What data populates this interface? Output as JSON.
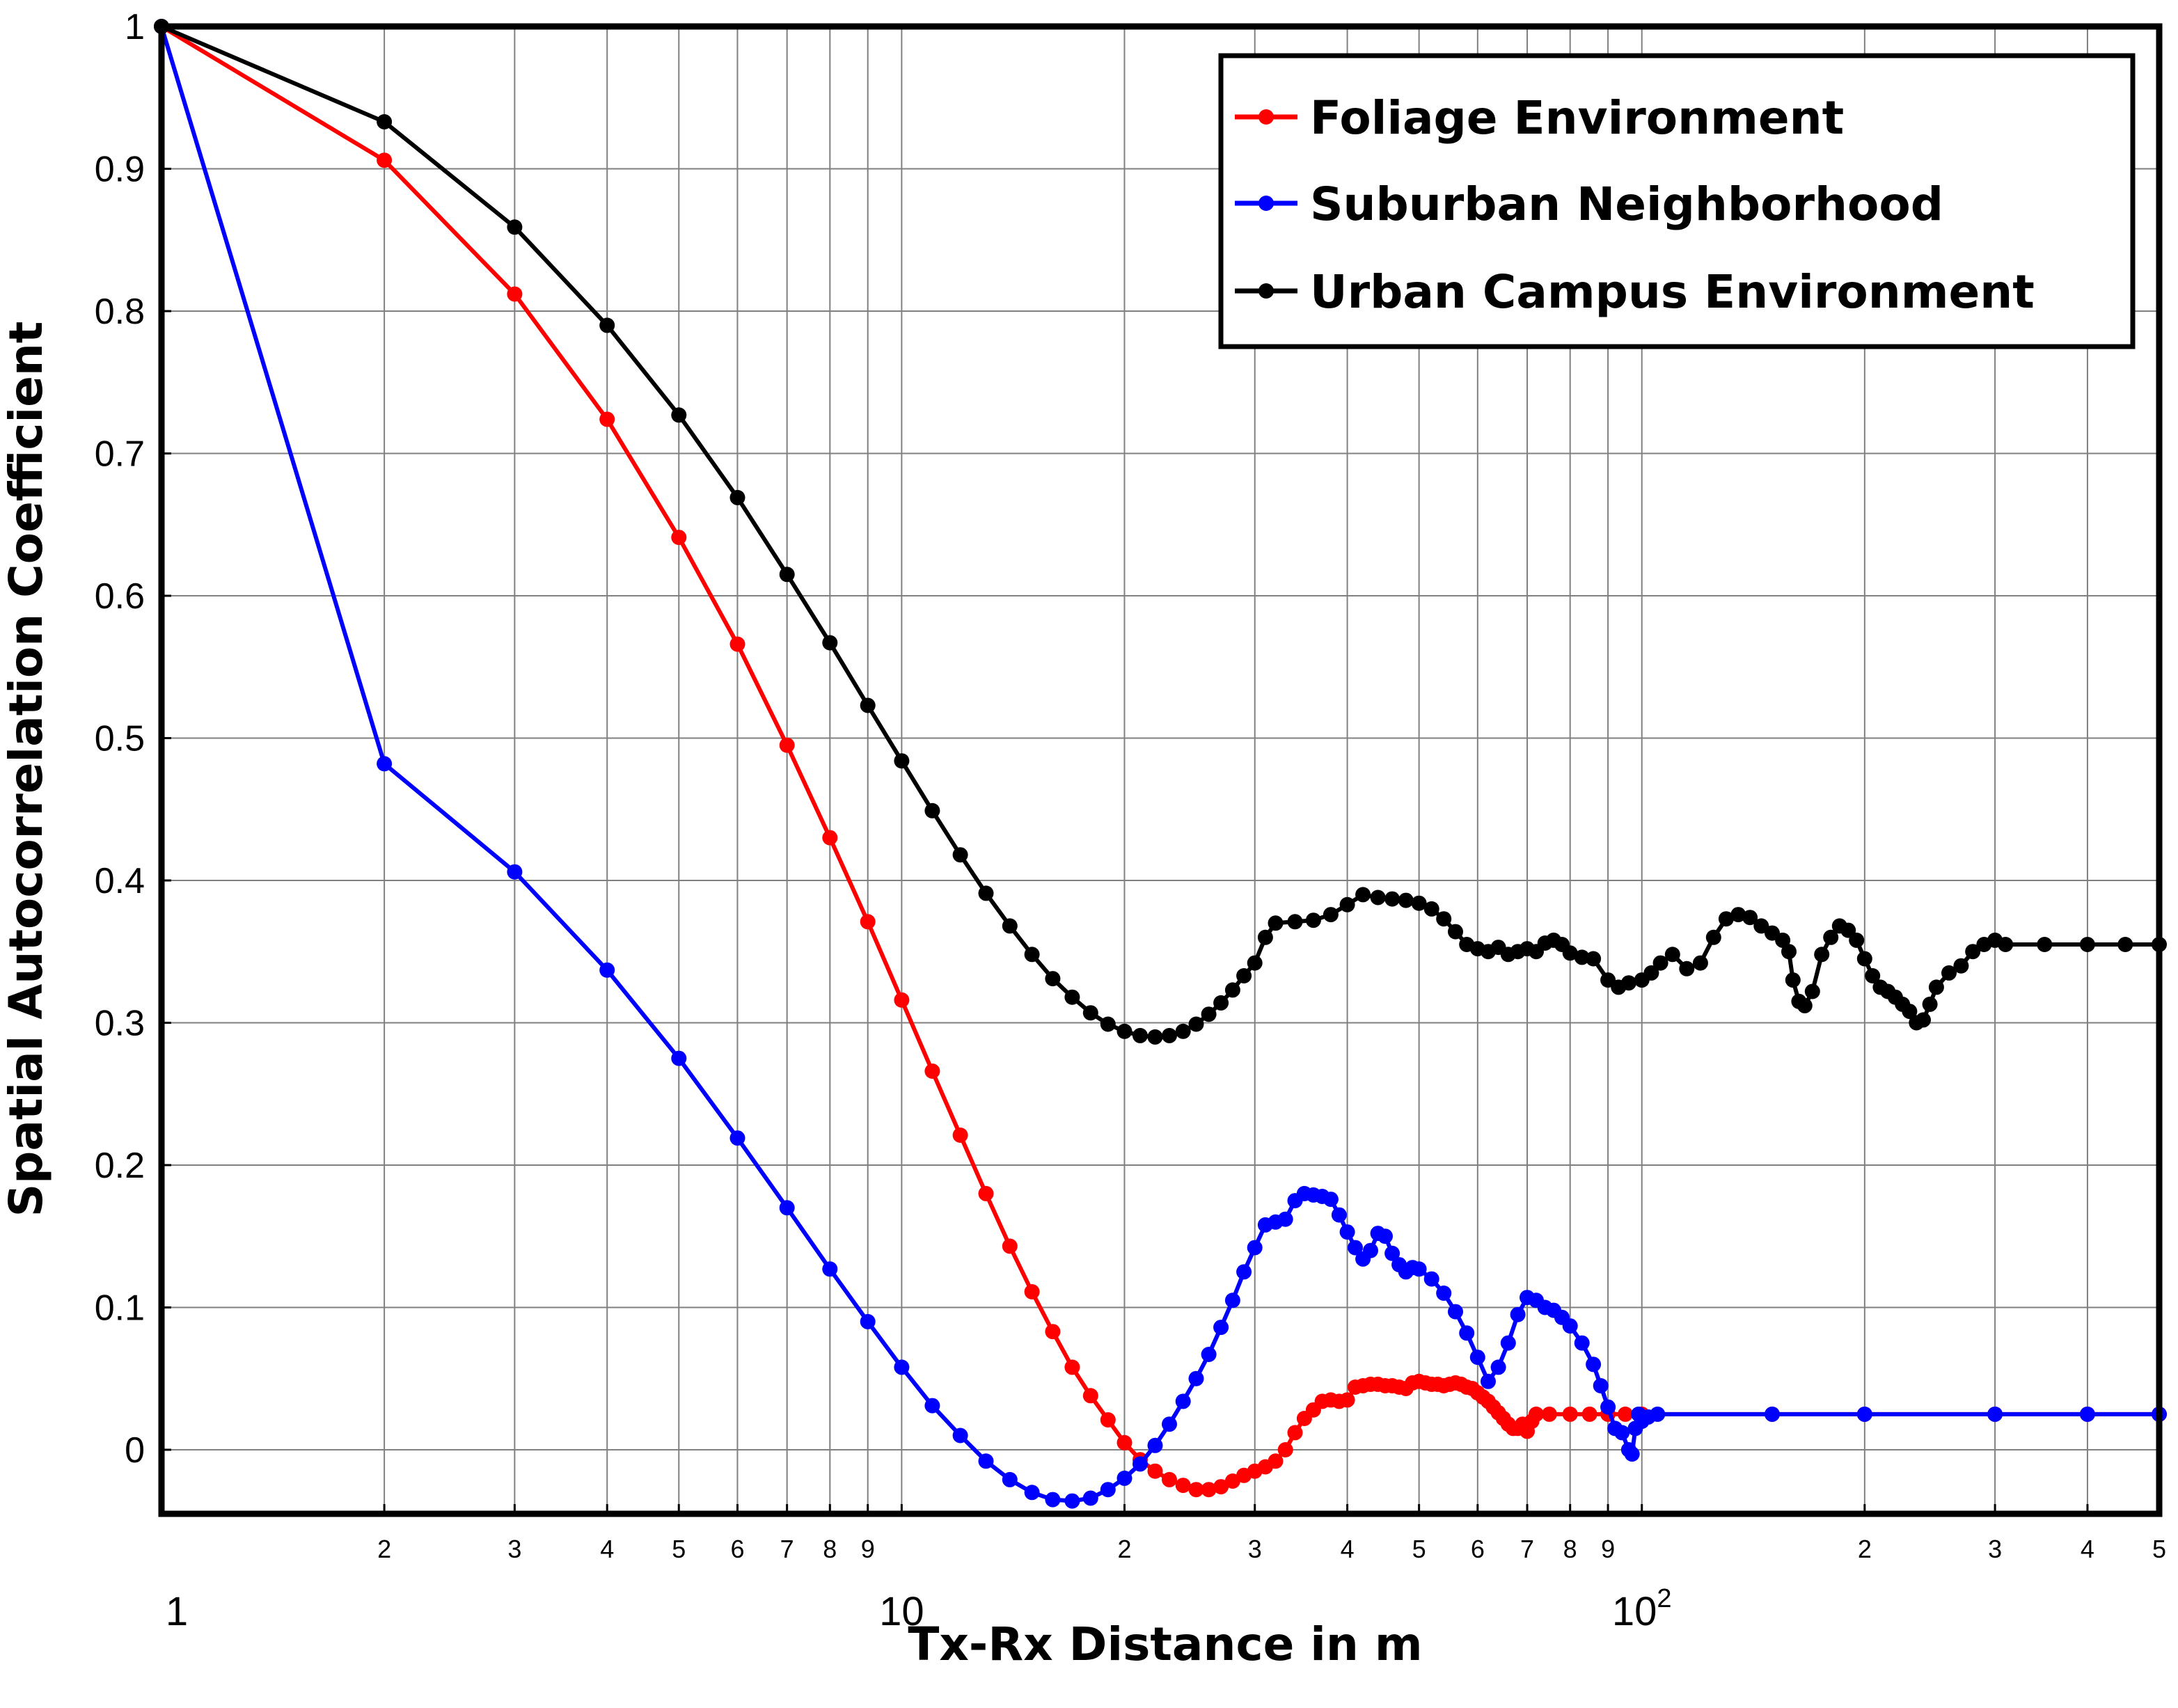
{
  "chart_data": {
    "type": "line",
    "title": "",
    "xlabel": "Tx-Rx Distance in m",
    "ylabel": "Spatial Autocorrelation Coefficient",
    "xscale": "log",
    "xlim": [
      1,
      500
    ],
    "ylim": [
      -0.045,
      1.0
    ],
    "grid": true,
    "legend_position": "top-right",
    "x_tick_labels": [
      {
        "x": 1,
        "label": "1",
        "major": true
      },
      {
        "x": 2,
        "label": "2"
      },
      {
        "x": 3,
        "label": "3"
      },
      {
        "x": 4,
        "label": "4"
      },
      {
        "x": 5,
        "label": "5"
      },
      {
        "x": 6,
        "label": "6"
      },
      {
        "x": 7,
        "label": "7"
      },
      {
        "x": 8,
        "label": "8"
      },
      {
        "x": 9,
        "label": "9"
      },
      {
        "x": 10,
        "label": "10",
        "major": true
      },
      {
        "x": 20,
        "label": "2"
      },
      {
        "x": 30,
        "label": "3"
      },
      {
        "x": 40,
        "label": "4"
      },
      {
        "x": 50,
        "label": "5"
      },
      {
        "x": 60,
        "label": "6"
      },
      {
        "x": 70,
        "label": "7"
      },
      {
        "x": 80,
        "label": "8"
      },
      {
        "x": 90,
        "label": "9"
      },
      {
        "x": 100,
        "label": "10",
        "sup": "2",
        "major": true
      },
      {
        "x": 200,
        "label": "2"
      },
      {
        "x": 300,
        "label": "3"
      },
      {
        "x": 400,
        "label": "4"
      },
      {
        "x": 500,
        "label": "5"
      }
    ],
    "y_ticks": [
      {
        "y": 0,
        "label": "0"
      },
      {
        "y": 0.1,
        "label": "0.1"
      },
      {
        "y": 0.2,
        "label": "0.2"
      },
      {
        "y": 0.3,
        "label": "0.3"
      },
      {
        "y": 0.4,
        "label": "0.4"
      },
      {
        "y": 0.5,
        "label": "0.5"
      },
      {
        "y": 0.6,
        "label": "0.6"
      },
      {
        "y": 0.7,
        "label": "0.7"
      },
      {
        "y": 0.8,
        "label": "0.8"
      },
      {
        "y": 0.9,
        "label": "0.9"
      },
      {
        "y": 1.0,
        "label": "1"
      }
    ],
    "series": [
      {
        "name": "Foliage Environment",
        "color": "#ff0000",
        "points": [
          [
            1,
            1.0
          ],
          [
            2,
            0.906
          ],
          [
            3,
            0.812
          ],
          [
            4,
            0.724
          ],
          [
            5,
            0.641
          ],
          [
            6,
            0.566
          ],
          [
            7,
            0.495
          ],
          [
            8,
            0.43
          ],
          [
            9,
            0.371
          ],
          [
            10,
            0.316
          ],
          [
            11,
            0.266
          ],
          [
            12,
            0.221
          ],
          [
            13,
            0.18
          ],
          [
            14,
            0.143
          ],
          [
            15,
            0.111
          ],
          [
            16,
            0.083
          ],
          [
            17,
            0.058
          ],
          [
            18,
            0.038
          ],
          [
            19,
            0.021
          ],
          [
            20,
            0.005
          ],
          [
            21,
            -0.007
          ],
          [
            22,
            -0.015
          ],
          [
            23,
            -0.021
          ],
          [
            24,
            -0.025
          ],
          [
            25,
            -0.028
          ],
          [
            26,
            -0.028
          ],
          [
            27,
            -0.026
          ],
          [
            28,
            -0.022
          ],
          [
            29,
            -0.018
          ],
          [
            30,
            -0.015
          ],
          [
            31,
            -0.012
          ],
          [
            32,
            -0.008
          ],
          [
            33,
            0.0
          ],
          [
            34,
            0.012
          ],
          [
            35,
            0.022
          ],
          [
            36,
            0.028
          ],
          [
            37,
            0.034
          ],
          [
            38,
            0.035
          ],
          [
            39,
            0.034
          ],
          [
            40,
            0.035
          ],
          [
            41,
            0.044
          ],
          [
            42,
            0.045
          ],
          [
            43,
            0.046
          ],
          [
            44,
            0.046
          ],
          [
            45,
            0.045
          ],
          [
            46,
            0.045
          ],
          [
            47,
            0.044
          ],
          [
            48,
            0.043
          ],
          [
            49,
            0.047
          ],
          [
            50,
            0.048
          ],
          [
            51,
            0.047
          ],
          [
            52,
            0.046
          ],
          [
            53,
            0.046
          ],
          [
            54,
            0.045
          ],
          [
            55,
            0.046
          ],
          [
            56,
            0.047
          ],
          [
            57,
            0.046
          ],
          [
            58,
            0.044
          ],
          [
            59,
            0.043
          ],
          [
            60,
            0.04
          ],
          [
            61,
            0.037
          ],
          [
            62,
            0.034
          ],
          [
            63,
            0.03
          ],
          [
            64,
            0.026
          ],
          [
            65,
            0.022
          ],
          [
            66,
            0.018
          ],
          [
            67,
            0.015
          ],
          [
            68,
            0.015
          ],
          [
            69,
            0.018
          ],
          [
            70,
            0.013
          ],
          [
            71,
            0.02
          ],
          [
            72,
            0.025
          ],
          [
            75,
            0.025
          ],
          [
            80,
            0.025
          ],
          [
            85,
            0.025
          ],
          [
            90,
            0.025
          ],
          [
            95,
            0.025
          ],
          [
            100,
            0.025
          ],
          [
            150,
            0.025
          ],
          [
            200,
            0.025
          ],
          [
            300,
            0.025
          ],
          [
            400,
            0.025
          ],
          [
            500,
            0.025
          ]
        ]
      },
      {
        "name": "Suburban Neighborhood",
        "color": "#0000ff",
        "points": [
          [
            1,
            1.0
          ],
          [
            2,
            0.482
          ],
          [
            3,
            0.406
          ],
          [
            4,
            0.337
          ],
          [
            5,
            0.275
          ],
          [
            6,
            0.219
          ],
          [
            7,
            0.17
          ],
          [
            8,
            0.127
          ],
          [
            9,
            0.09
          ],
          [
            10,
            0.058
          ],
          [
            11,
            0.031
          ],
          [
            12,
            0.01
          ],
          [
            13,
            -0.008
          ],
          [
            14,
            -0.021
          ],
          [
            15,
            -0.03
          ],
          [
            16,
            -0.035
          ],
          [
            17,
            -0.036
          ],
          [
            18,
            -0.034
          ],
          [
            19,
            -0.028
          ],
          [
            20,
            -0.02
          ],
          [
            21,
            -0.01
          ],
          [
            22,
            0.003
          ],
          [
            23,
            0.018
          ],
          [
            24,
            0.034
          ],
          [
            25,
            0.05
          ],
          [
            26,
            0.067
          ],
          [
            27,
            0.086
          ],
          [
            28,
            0.105
          ],
          [
            29,
            0.125
          ],
          [
            30,
            0.142
          ],
          [
            31,
            0.158
          ],
          [
            32,
            0.16
          ],
          [
            33,
            0.162
          ],
          [
            34,
            0.175
          ],
          [
            35,
            0.18
          ],
          [
            36,
            0.179
          ],
          [
            37,
            0.178
          ],
          [
            38,
            0.176
          ],
          [
            39,
            0.165
          ],
          [
            40,
            0.153
          ],
          [
            41,
            0.142
          ],
          [
            42,
            0.134
          ],
          [
            43,
            0.14
          ],
          [
            44,
            0.152
          ],
          [
            45,
            0.15
          ],
          [
            46,
            0.138
          ],
          [
            47,
            0.13
          ],
          [
            48,
            0.125
          ],
          [
            49,
            0.128
          ],
          [
            50,
            0.127
          ],
          [
            52,
            0.12
          ],
          [
            54,
            0.11
          ],
          [
            56,
            0.097
          ],
          [
            58,
            0.082
          ],
          [
            60,
            0.065
          ],
          [
            62,
            0.048
          ],
          [
            64,
            0.058
          ],
          [
            66,
            0.075
          ],
          [
            68,
            0.095
          ],
          [
            70,
            0.107
          ],
          [
            72,
            0.105
          ],
          [
            74,
            0.1
          ],
          [
            76,
            0.098
          ],
          [
            78,
            0.093
          ],
          [
            80,
            0.087
          ],
          [
            83,
            0.075
          ],
          [
            86,
            0.06
          ],
          [
            88,
            0.045
          ],
          [
            90,
            0.03
          ],
          [
            92,
            0.015
          ],
          [
            94,
            0.012
          ],
          [
            96,
            0.0
          ],
          [
            97,
            -0.003
          ],
          [
            98,
            0.015
          ],
          [
            99,
            0.025
          ],
          [
            100,
            0.02
          ],
          [
            102,
            0.023
          ],
          [
            105,
            0.025
          ],
          [
            150,
            0.025
          ],
          [
            200,
            0.025
          ],
          [
            300,
            0.025
          ],
          [
            400,
            0.025
          ],
          [
            500,
            0.025
          ]
        ]
      },
      {
        "name": "Urban Campus Environment",
        "color": "#000000",
        "points": [
          [
            1,
            1.0
          ],
          [
            2,
            0.933
          ],
          [
            3,
            0.859
          ],
          [
            4,
            0.79
          ],
          [
            5,
            0.727
          ],
          [
            6,
            0.669
          ],
          [
            7,
            0.615
          ],
          [
            8,
            0.567
          ],
          [
            9,
            0.523
          ],
          [
            10,
            0.484
          ],
          [
            11,
            0.449
          ],
          [
            12,
            0.418
          ],
          [
            13,
            0.391
          ],
          [
            14,
            0.368
          ],
          [
            15,
            0.348
          ],
          [
            16,
            0.331
          ],
          [
            17,
            0.318
          ],
          [
            18,
            0.307
          ],
          [
            19,
            0.299
          ],
          [
            20,
            0.294
          ],
          [
            21,
            0.291
          ],
          [
            22,
            0.29
          ],
          [
            23,
            0.291
          ],
          [
            24,
            0.294
          ],
          [
            25,
            0.299
          ],
          [
            26,
            0.306
          ],
          [
            27,
            0.314
          ],
          [
            28,
            0.323
          ],
          [
            29,
            0.333
          ],
          [
            30,
            0.342
          ],
          [
            31,
            0.36
          ],
          [
            32,
            0.37
          ],
          [
            34,
            0.371
          ],
          [
            36,
            0.372
          ],
          [
            38,
            0.376
          ],
          [
            40,
            0.383
          ],
          [
            42,
            0.39
          ],
          [
            44,
            0.388
          ],
          [
            46,
            0.387
          ],
          [
            48,
            0.386
          ],
          [
            50,
            0.384
          ],
          [
            52,
            0.38
          ],
          [
            54,
            0.373
          ],
          [
            56,
            0.364
          ],
          [
            58,
            0.355
          ],
          [
            60,
            0.352
          ],
          [
            62,
            0.35
          ],
          [
            64,
            0.353
          ],
          [
            66,
            0.348
          ],
          [
            68,
            0.35
          ],
          [
            70,
            0.352
          ],
          [
            72,
            0.35
          ],
          [
            74,
            0.356
          ],
          [
            76,
            0.358
          ],
          [
            78,
            0.355
          ],
          [
            80,
            0.349
          ],
          [
            83,
            0.346
          ],
          [
            86,
            0.345
          ],
          [
            90,
            0.33
          ],
          [
            93,
            0.325
          ],
          [
            96,
            0.328
          ],
          [
            100,
            0.33
          ],
          [
            103,
            0.335
          ],
          [
            106,
            0.342
          ],
          [
            110,
            0.348
          ],
          [
            115,
            0.338
          ],
          [
            120,
            0.342
          ],
          [
            125,
            0.36
          ],
          [
            130,
            0.373
          ],
          [
            135,
            0.376
          ],
          [
            140,
            0.374
          ],
          [
            145,
            0.368
          ],
          [
            150,
            0.363
          ],
          [
            155,
            0.358
          ],
          [
            158,
            0.35
          ],
          [
            160,
            0.33
          ],
          [
            163,
            0.315
          ],
          [
            166,
            0.312
          ],
          [
            170,
            0.322
          ],
          [
            175,
            0.348
          ],
          [
            180,
            0.36
          ],
          [
            185,
            0.368
          ],
          [
            190,
            0.365
          ],
          [
            195,
            0.358
          ],
          [
            200,
            0.345
          ],
          [
            205,
            0.333
          ],
          [
            210,
            0.325
          ],
          [
            215,
            0.322
          ],
          [
            220,
            0.318
          ],
          [
            225,
            0.313
          ],
          [
            230,
            0.308
          ],
          [
            235,
            0.3
          ],
          [
            240,
            0.302
          ],
          [
            245,
            0.313
          ],
          [
            250,
            0.325
          ],
          [
            260,
            0.335
          ],
          [
            270,
            0.34
          ],
          [
            280,
            0.35
          ],
          [
            290,
            0.355
          ],
          [
            300,
            0.358
          ],
          [
            310,
            0.355
          ],
          [
            350,
            0.355
          ],
          [
            400,
            0.355
          ],
          [
            450,
            0.355
          ],
          [
            500,
            0.355
          ]
        ]
      }
    ]
  }
}
